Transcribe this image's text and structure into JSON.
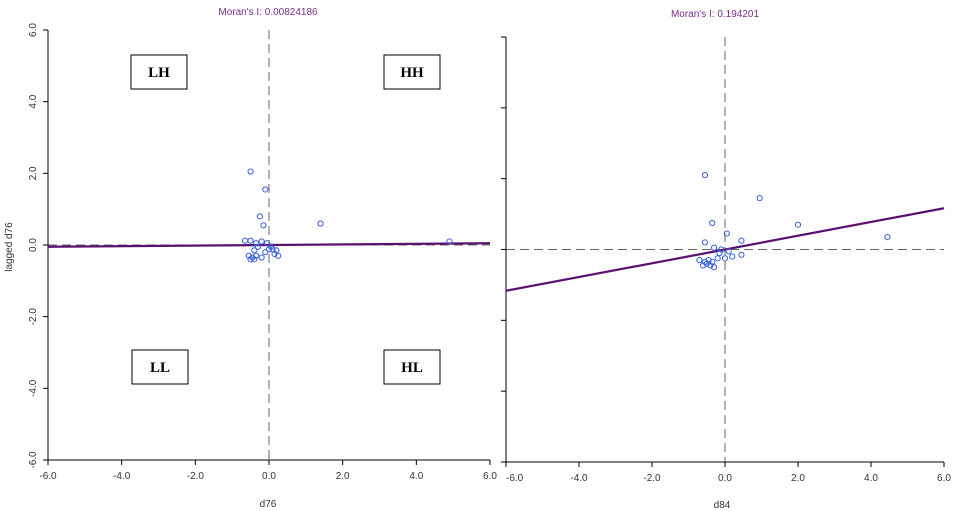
{
  "colors": {
    "title": "#7a2c8c",
    "point": "#3a5fe0",
    "regression": "#5b1070",
    "axis": "#000000",
    "mean_line": "#666666"
  },
  "chart_data": [
    {
      "type": "scatter",
      "title": "Moran's I: 0.00824186",
      "xlabel": "d76",
      "ylabel": "lagged d76",
      "xlim": [
        -6,
        6
      ],
      "ylim": [
        -6,
        6
      ],
      "xticks": [
        "-6.0",
        "-4.0",
        "-2.0",
        "0.0",
        "2.0",
        "4.0",
        "6.0"
      ],
      "yticks": [
        "-6.0",
        "-4.0",
        "-2.0",
        "0.0",
        "2.0",
        "4.0",
        "6.0"
      ],
      "regression_slope": 0.00824186,
      "grid": false,
      "quadrant_labels": {
        "top_left": "LH",
        "top_right": "HH",
        "bottom_left": "LL",
        "bottom_right": "HL"
      },
      "points": [
        [
          -0.5,
          2.05
        ],
        [
          -0.1,
          1.55
        ],
        [
          -0.25,
          0.8
        ],
        [
          -0.15,
          0.55
        ],
        [
          1.4,
          0.6
        ],
        [
          -0.65,
          0.12
        ],
        [
          -0.5,
          0.12
        ],
        [
          -0.35,
          0.05
        ],
        [
          -0.2,
          0.1
        ],
        [
          -0.05,
          0.05
        ],
        [
          0.05,
          -0.05
        ],
        [
          -0.3,
          -0.05
        ],
        [
          -0.4,
          -0.15
        ],
        [
          0.1,
          -0.12
        ],
        [
          0.2,
          -0.15
        ],
        [
          -0.55,
          -0.3
        ],
        [
          -0.45,
          -0.35
        ],
        [
          -0.35,
          -0.3
        ],
        [
          -0.2,
          -0.35
        ],
        [
          0.25,
          -0.3
        ],
        [
          -0.5,
          -0.4
        ],
        [
          -0.4,
          -0.4
        ],
        [
          -0.1,
          -0.2
        ],
        [
          0.15,
          -0.25
        ],
        [
          0.0,
          -0.12
        ],
        [
          4.9,
          0.1
        ]
      ]
    },
    {
      "type": "scatter",
      "title": "Moran's I: 0.194201",
      "xlabel": "d84",
      "ylabel": "",
      "xlim": [
        -6,
        6
      ],
      "ylim": [
        -6,
        6
      ],
      "xticks": [
        "-6.0",
        "-4.0",
        "-2.0",
        "0.0",
        "2.0",
        "4.0",
        "6.0"
      ],
      "regression_slope": 0.194201,
      "grid": false,
      "points": [
        [
          -0.55,
          2.1
        ],
        [
          0.95,
          1.45
        ],
        [
          -0.35,
          0.75
        ],
        [
          2.0,
          0.7
        ],
        [
          0.05,
          0.45
        ],
        [
          4.45,
          0.35
        ],
        [
          -0.55,
          0.2
        ],
        [
          0.45,
          0.25
        ],
        [
          -0.3,
          0.05
        ],
        [
          -0.1,
          0.0
        ],
        [
          0.1,
          -0.05
        ],
        [
          -0.7,
          -0.3
        ],
        [
          -0.55,
          -0.35
        ],
        [
          -0.45,
          -0.3
        ],
        [
          -0.35,
          -0.35
        ],
        [
          -0.6,
          -0.45
        ],
        [
          -0.5,
          -0.4
        ],
        [
          -0.4,
          -0.45
        ],
        [
          -0.3,
          -0.5
        ],
        [
          -0.2,
          -0.25
        ],
        [
          0.0,
          -0.25
        ],
        [
          0.2,
          -0.2
        ],
        [
          0.45,
          -0.15
        ],
        [
          -0.15,
          -0.1
        ]
      ]
    }
  ]
}
